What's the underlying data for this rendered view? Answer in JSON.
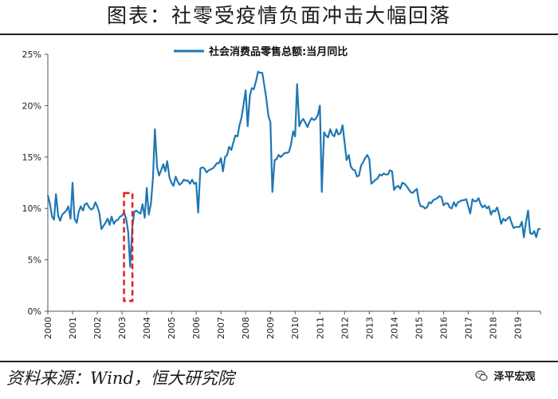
{
  "page": {
    "title": "图表：社零受疫情负面冲击大幅回落",
    "source": "资料来源：Wind，恒大研究院",
    "watermark": "泽平宏观"
  },
  "colors": {
    "line": "#1f77b4",
    "highlight_box": "#e02020",
    "axis": "#555555"
  },
  "icons": {
    "watermark": "wechat-icon"
  },
  "chart_data": {
    "type": "line",
    "title": "",
    "xlabel": "",
    "ylabel": "",
    "legend_position": "top",
    "grid": false,
    "x_range": [
      2000.0,
      2019.92
    ],
    "ylim": [
      0,
      25
    ],
    "x_tick_labels": [
      "2000",
      "2001",
      "2002",
      "2003",
      "2004",
      "2005",
      "2006",
      "2007",
      "2008",
      "2009",
      "2010",
      "2011",
      "2012",
      "2013",
      "2014",
      "2015",
      "2016",
      "2017",
      "2018",
      "2019"
    ],
    "y_tick_labels": [
      "0%",
      "5%",
      "10%",
      "15%",
      "20%",
      "25%"
    ],
    "series": [
      {
        "name": "社会消费品零售总额:当月同比",
        "x": [
          2000.0,
          2000.08,
          2000.17,
          2000.25,
          2000.33,
          2000.42,
          2000.5,
          2000.58,
          2000.67,
          2000.75,
          2000.83,
          2000.92,
          2001.0,
          2001.08,
          2001.17,
          2001.25,
          2001.33,
          2001.42,
          2001.5,
          2001.58,
          2001.67,
          2001.75,
          2001.83,
          2001.92,
          2002.0,
          2002.08,
          2002.17,
          2002.25,
          2002.33,
          2002.42,
          2002.5,
          2002.58,
          2002.67,
          2002.75,
          2002.83,
          2002.92,
          2003.0,
          2003.08,
          2003.17,
          2003.25,
          2003.33,
          2003.42,
          2003.5,
          2003.58,
          2003.67,
          2003.75,
          2003.83,
          2003.92,
          2004.0,
          2004.08,
          2004.17,
          2004.25,
          2004.33,
          2004.42,
          2004.5,
          2004.58,
          2004.67,
          2004.75,
          2004.83,
          2004.92,
          2005.0,
          2005.08,
          2005.17,
          2005.25,
          2005.33,
          2005.42,
          2005.5,
          2005.58,
          2005.67,
          2005.75,
          2005.83,
          2005.92,
          2006.0,
          2006.08,
          2006.17,
          2006.25,
          2006.33,
          2006.42,
          2006.5,
          2006.58,
          2006.67,
          2006.75,
          2006.83,
          2006.92,
          2007.0,
          2007.08,
          2007.17,
          2007.25,
          2007.33,
          2007.42,
          2007.5,
          2007.58,
          2007.67,
          2007.75,
          2007.83,
          2007.92,
          2008.0,
          2008.08,
          2008.17,
          2008.25,
          2008.33,
          2008.42,
          2008.5,
          2008.58,
          2008.67,
          2008.75,
          2008.83,
          2008.92,
          2009.0,
          2009.08,
          2009.17,
          2009.25,
          2009.33,
          2009.42,
          2009.5,
          2009.58,
          2009.67,
          2009.75,
          2009.83,
          2009.92,
          2010.0,
          2010.08,
          2010.17,
          2010.25,
          2010.33,
          2010.42,
          2010.5,
          2010.58,
          2010.67,
          2010.75,
          2010.83,
          2010.92,
          2011.0,
          2011.08,
          2011.17,
          2011.25,
          2011.33,
          2011.42,
          2011.5,
          2011.58,
          2011.67,
          2011.75,
          2011.83,
          2011.92,
          2012.0,
          2012.08,
          2012.17,
          2012.25,
          2012.33,
          2012.42,
          2012.5,
          2012.58,
          2012.67,
          2012.75,
          2012.83,
          2012.92,
          2013.0,
          2013.08,
          2013.17,
          2013.25,
          2013.33,
          2013.42,
          2013.5,
          2013.58,
          2013.67,
          2013.75,
          2013.83,
          2013.92,
          2014.0,
          2014.08,
          2014.17,
          2014.25,
          2014.33,
          2014.42,
          2014.5,
          2014.58,
          2014.67,
          2014.75,
          2014.83,
          2014.92,
          2015.0,
          2015.08,
          2015.17,
          2015.25,
          2015.33,
          2015.42,
          2015.5,
          2015.58,
          2015.67,
          2015.75,
          2015.83,
          2015.92,
          2016.0,
          2016.08,
          2016.17,
          2016.25,
          2016.33,
          2016.42,
          2016.5,
          2016.58,
          2016.67,
          2016.75,
          2016.83,
          2016.92,
          2017.0,
          2017.08,
          2017.17,
          2017.25,
          2017.33,
          2017.42,
          2017.5,
          2017.58,
          2017.67,
          2017.75,
          2017.83,
          2017.92,
          2018.0,
          2018.08,
          2018.17,
          2018.25,
          2018.33,
          2018.42,
          2018.5,
          2018.58,
          2018.67,
          2018.75,
          2018.83,
          2018.92,
          2019.0,
          2019.08,
          2019.17,
          2019.25,
          2019.33,
          2019.42,
          2019.5,
          2019.58,
          2019.67,
          2019.75,
          2019.83,
          2019.92
        ],
        "values": [
          11.3,
          10.5,
          9.2,
          8.9,
          11.4,
          9.3,
          8.8,
          9.4,
          9.6,
          9.8,
          10.2,
          9.0,
          12.5,
          9.0,
          8.6,
          9.7,
          10.2,
          9.8,
          10.4,
          10.5,
          10.1,
          9.9,
          10.0,
          10.6,
          10.2,
          9.6,
          8.0,
          8.3,
          8.6,
          9.0,
          8.4,
          9.2,
          8.5,
          8.8,
          8.9,
          9.2,
          9.3,
          9.6,
          9.0,
          7.7,
          4.3,
          8.3,
          9.7,
          9.8,
          9.6,
          9.5,
          10.4,
          9.1,
          12.0,
          9.4,
          10.5,
          13.0,
          17.7,
          14.0,
          13.2,
          13.7,
          14.3,
          13.6,
          14.6,
          13.0,
          12.5,
          12.2,
          13.1,
          12.6,
          12.3,
          12.5,
          12.8,
          12.7,
          12.7,
          12.4,
          12.8,
          12.4,
          12.5,
          9.6,
          13.9,
          14.0,
          13.9,
          13.5,
          13.7,
          13.8,
          13.9,
          14.1,
          14.4,
          14.4,
          14.9,
          13.6,
          15.0,
          15.2,
          16.0,
          15.7,
          16.4,
          17.1,
          17.0,
          18.1,
          18.8,
          20.2,
          21.5,
          18.0,
          21.0,
          21.7,
          21.6,
          22.4,
          23.3,
          23.2,
          23.2,
          22.0,
          20.8,
          19.0,
          18.4,
          11.6,
          14.7,
          14.8,
          15.2,
          15.0,
          15.2,
          15.4,
          15.4,
          15.5,
          16.2,
          17.5,
          17.0,
          22.1,
          18.0,
          18.5,
          18.7,
          18.3,
          17.9,
          18.4,
          18.8,
          18.6,
          18.7,
          19.1,
          20.0,
          11.6,
          17.4,
          17.1,
          16.9,
          17.7,
          17.2,
          17.0,
          17.7,
          17.2,
          17.3,
          18.1,
          16.4,
          14.7,
          15.2,
          14.1,
          13.8,
          13.7,
          13.1,
          13.2,
          14.2,
          14.5,
          14.9,
          15.2,
          14.8,
          12.4,
          12.6,
          12.8,
          12.9,
          13.3,
          13.2,
          13.4,
          13.3,
          13.3,
          13.7,
          13.6,
          11.8,
          12.1,
          12.2,
          11.9,
          12.5,
          12.4,
          12.2,
          11.9,
          11.6,
          11.5,
          11.7,
          11.9,
          10.7,
          10.2,
          10.2,
          10.0,
          10.1,
          10.6,
          10.5,
          10.8,
          10.9,
          11.0,
          11.2,
          11.1,
          10.3,
          10.5,
          10.5,
          10.1,
          10.0,
          10.6,
          10.2,
          10.6,
          10.7,
          10.8,
          10.8,
          10.9,
          10.2,
          9.5,
          10.9,
          10.7,
          10.7,
          11.0,
          10.4,
          10.1,
          10.3,
          10.0,
          10.2,
          9.4,
          9.8,
          9.7,
          10.1,
          9.4,
          8.5,
          9.0,
          8.8,
          9.0,
          9.2,
          8.6,
          8.1,
          8.2,
          8.2,
          8.2,
          8.7,
          7.2,
          8.6,
          9.8,
          7.6,
          7.5,
          7.8,
          7.2,
          8.0,
          8.0
        ]
      }
    ],
    "annotations": [
      {
        "type": "dashed-box",
        "x_range": [
          2003.08,
          2003.42
        ],
        "y_range": [
          1,
          11.5
        ]
      }
    ]
  }
}
